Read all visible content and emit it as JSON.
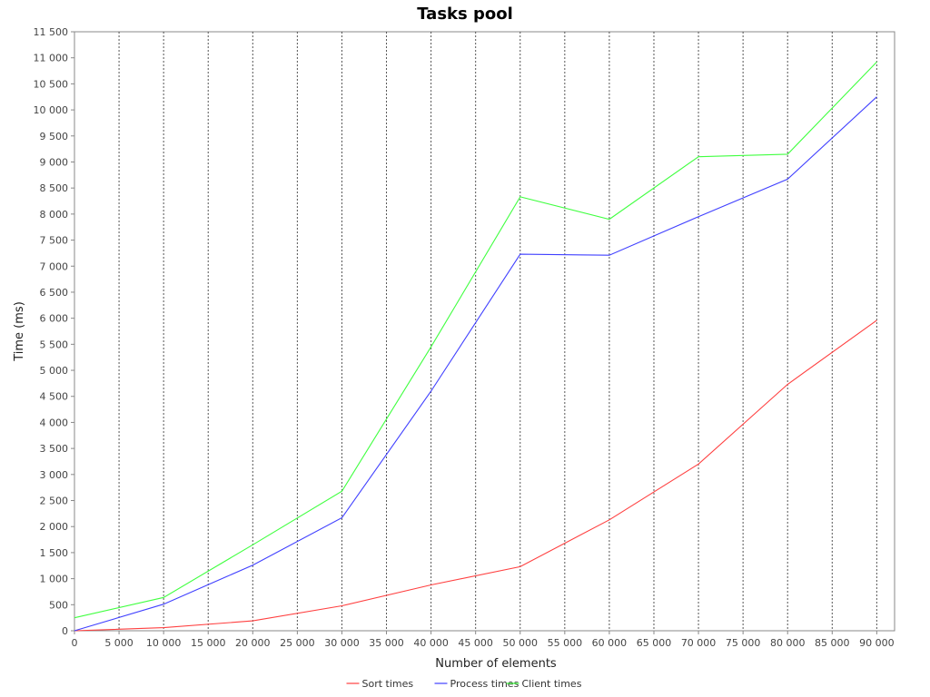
{
  "chart_data": {
    "type": "line",
    "title": "Tasks pool",
    "xlabel": "Number of elements",
    "ylabel": "Time (ms)",
    "xlim": [
      0,
      92000
    ],
    "ylim": [
      0,
      11500
    ],
    "xticks": [
      0,
      5000,
      10000,
      15000,
      20000,
      25000,
      30000,
      35000,
      40000,
      45000,
      50000,
      55000,
      60000,
      65000,
      70000,
      75000,
      80000,
      85000,
      90000
    ],
    "xtick_labels": [
      "0",
      "5 000",
      "10 000",
      "15 000",
      "20 000",
      "25 000",
      "30 000",
      "35 000",
      "40 000",
      "45 000",
      "50 000",
      "55 000",
      "60 000",
      "65 000",
      "70 000",
      "75 000",
      "80 000",
      "85 000",
      "90 000"
    ],
    "yticks": [
      0,
      500,
      1000,
      1500,
      2000,
      2500,
      3000,
      3500,
      4000,
      4500,
      5000,
      5500,
      6000,
      6500,
      7000,
      7500,
      8000,
      8500,
      9000,
      9500,
      10000,
      10500,
      11000,
      11500
    ],
    "ytick_labels": [
      "0",
      "500",
      "1 000",
      "1 500",
      "2 000",
      "2 500",
      "3 000",
      "3 500",
      "4 000",
      "4 500",
      "5 000",
      "5 500",
      "6 000",
      "6 500",
      "7 000",
      "7 500",
      "8 000",
      "8 500",
      "9 000",
      "9 500",
      "10 000",
      "10 500",
      "11 000",
      "11 500"
    ],
    "x": [
      0,
      10000,
      20000,
      30000,
      40000,
      50000,
      60000,
      70000,
      80000,
      90000
    ],
    "series": [
      {
        "name": "Sort times",
        "color": "#ff4040",
        "values": [
          0,
          60,
          190,
          480,
          880,
          1230,
          2130,
          3200,
          4730,
          5960
        ]
      },
      {
        "name": "Process times",
        "color": "#4040ff",
        "values": [
          0,
          510,
          1260,
          2170,
          4600,
          7230,
          7210,
          7950,
          8670,
          10250
        ]
      },
      {
        "name": "Client times",
        "color": "#40ff40",
        "values": [
          250,
          640,
          1650,
          2680,
          5450,
          8330,
          7900,
          9100,
          9150,
          10920
        ]
      }
    ],
    "grid": {
      "x": true,
      "y": false
    },
    "legend_position": "bottom"
  }
}
